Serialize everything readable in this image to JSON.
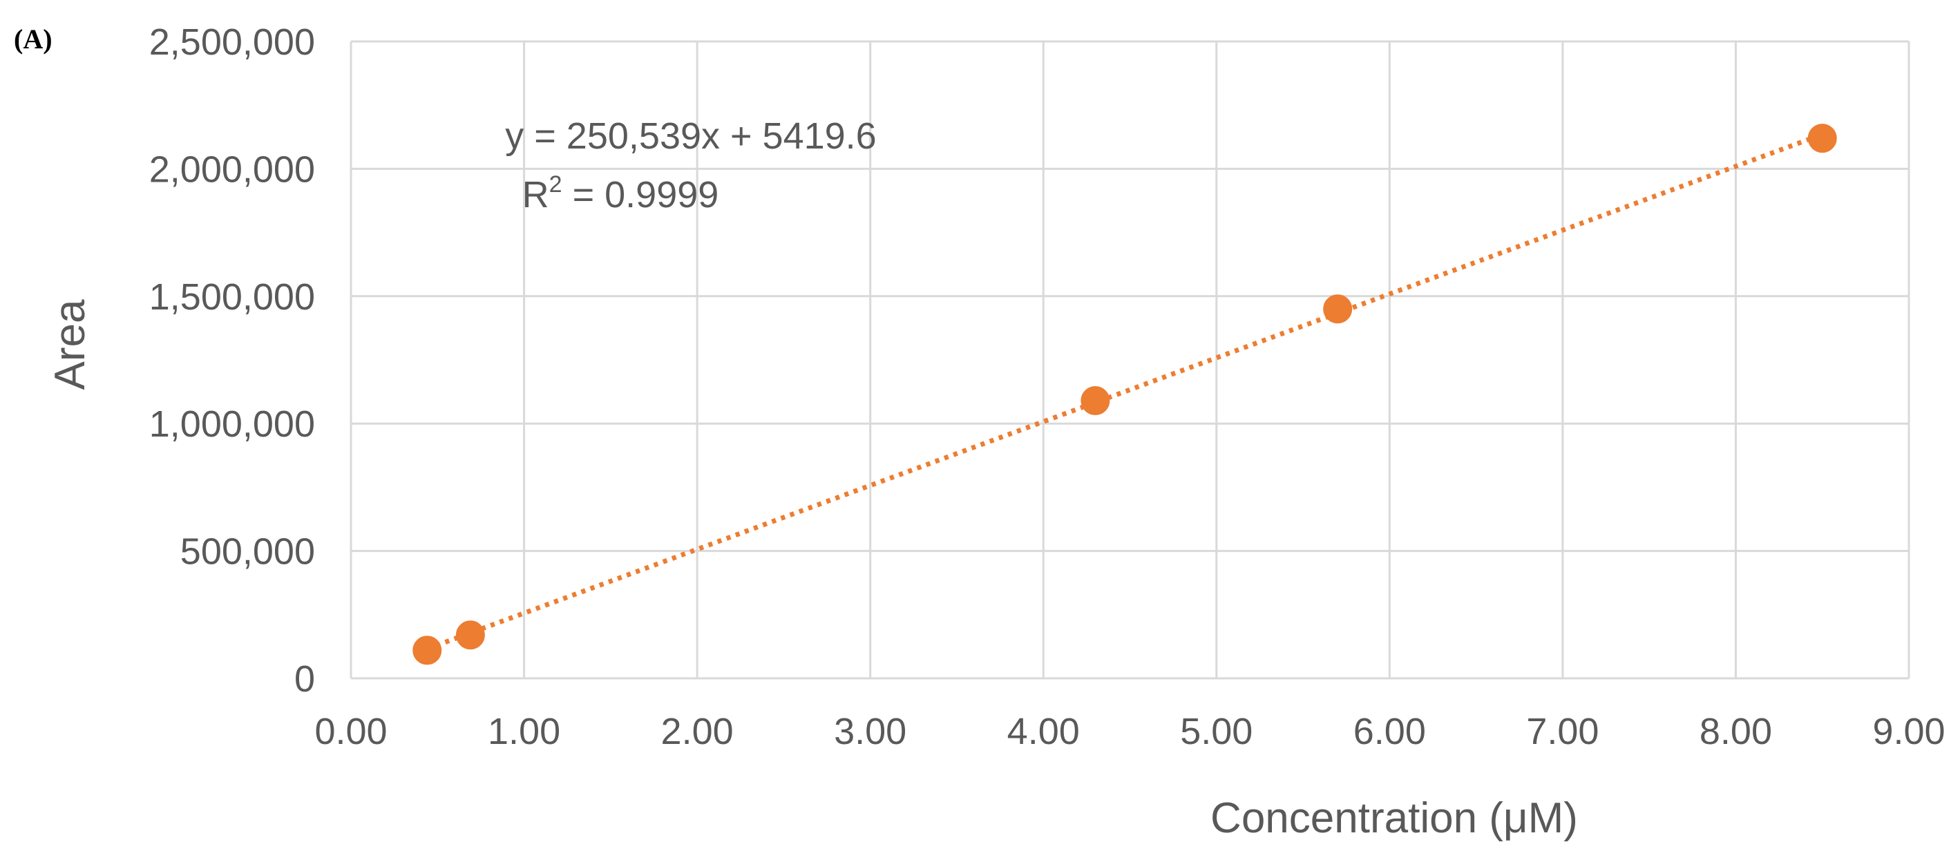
{
  "panel_label": "(A)",
  "chart_data": {
    "type": "scatter",
    "title": "",
    "xlabel": "Concentration (μM)",
    "ylabel": "Area",
    "xlim": [
      0,
      9
    ],
    "ylim": [
      0,
      2500000
    ],
    "x_ticks": [
      0,
      1,
      2,
      3,
      4,
      5,
      6,
      7,
      8,
      9
    ],
    "y_ticks": [
      0,
      500000,
      1000000,
      1500000,
      2000000,
      2500000
    ],
    "x_tick_labels": [
      "0.00",
      "1.00",
      "2.00",
      "3.00",
      "4.00",
      "5.00",
      "6.00",
      "7.00",
      "8.00",
      "9.00"
    ],
    "y_tick_labels": [
      "0",
      "500,000",
      "1,000,000",
      "1,500,000",
      "2,000,000",
      "2,500,000"
    ],
    "grid": true,
    "legend": "none",
    "series": [
      {
        "name": "Area",
        "color": "#ED7D31",
        "x": [
          0.44,
          0.69,
          4.3,
          5.7,
          8.5
        ],
        "y": [
          110000,
          170000,
          1090000,
          1450000,
          2120000
        ]
      }
    ],
    "trendline": {
      "type": "linear",
      "style": "dotted",
      "color": "#ED7D31",
      "slope": 250539,
      "intercept": 5419.6,
      "x_range": [
        0.44,
        8.5
      ]
    },
    "annotations": {
      "equation": "y = 250,539x + 5419.6",
      "r2_prefix": "R",
      "r2_superscript": "2",
      "r2_value": " = 0.9999"
    }
  }
}
